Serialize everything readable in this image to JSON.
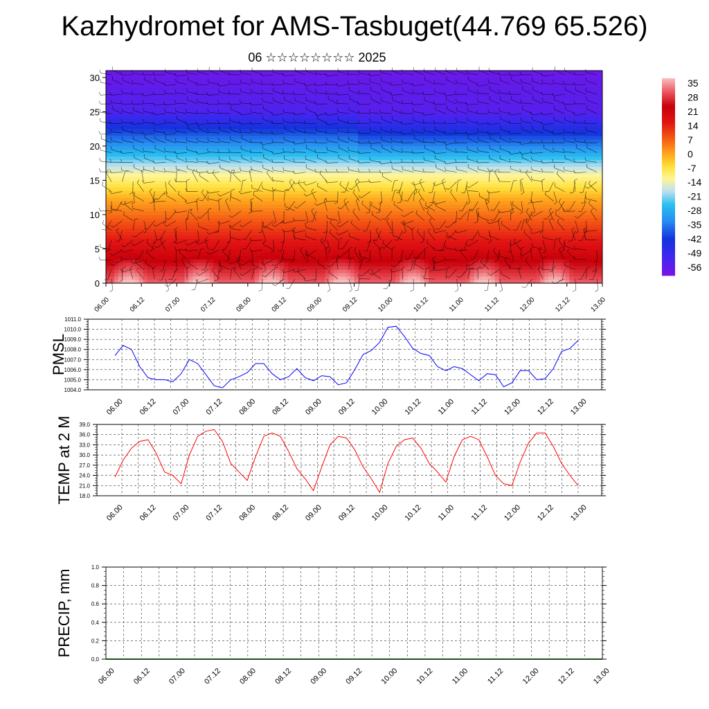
{
  "header": {
    "title": "Kazhydromet for AMS-Tasbuget(44.769 65.526)",
    "subtitle": "06 ☆☆☆☆☆☆☆☆ 2025"
  },
  "colors": {
    "pmsl_line": "#0000ff",
    "temp_line": "#ff0000",
    "precip_baseline": "#1a4d1a",
    "grid": "#333333"
  },
  "chart_data": [
    {
      "type": "heatmap",
      "name": "cross-section",
      "x_tick_labels": [
        "06.00",
        "06.12",
        "07.00",
        "07.12",
        "08.00",
        "08.12",
        "09.00",
        "09.12",
        "10.00",
        "10.12",
        "11.00",
        "11.12",
        "12.00",
        "12.12",
        "13.00"
      ],
      "ylim": [
        0,
        31
      ],
      "y_ticks": [
        0,
        5,
        10,
        15,
        20,
        25,
        30
      ],
      "colorbar": {
        "labels": [
          "35",
          "28",
          "21",
          "14",
          "7",
          "0",
          "-7",
          "-14",
          "-21",
          "-28",
          "-35",
          "-42",
          "-49",
          "-56"
        ],
        "range": [
          -60,
          38
        ]
      },
      "overlay": "wind barbs"
    },
    {
      "type": "line",
      "ylabel": "PMSL",
      "color": "#0000ff",
      "y_tick_labels": [
        "1011.0",
        "1010.0",
        "1009.0",
        "1008.0",
        "1007.0",
        "1006.0",
        "1005.0",
        "1004.0"
      ],
      "ylim": [
        1004.0,
        1011.0
      ],
      "x_tick_labels": [
        "06.00",
        "06.12",
        "07.00",
        "07.12",
        "08.00",
        "08.12",
        "09.00",
        "09.12",
        "10.00",
        "10.12",
        "11.00",
        "11.12",
        "12.00",
        "12.12",
        "13.00"
      ],
      "values": [
        1007.4,
        1008.4,
        1008.0,
        1006.3,
        1005.2,
        1005.0,
        1005.0,
        1004.8,
        1005.6,
        1007.0,
        1006.6,
        1005.5,
        1004.4,
        1004.2,
        1005.0,
        1005.3,
        1005.7,
        1006.6,
        1006.6,
        1005.6,
        1005.0,
        1005.3,
        1006.1,
        1005.2,
        1004.9,
        1005.4,
        1005.3,
        1004.5,
        1004.7,
        1006.0,
        1007.5,
        1007.9,
        1008.7,
        1010.2,
        1010.3,
        1009.3,
        1008.1,
        1007.6,
        1007.4,
        1006.3,
        1005.9,
        1006.3,
        1006.1,
        1005.5,
        1004.9,
        1005.6,
        1005.5,
        1004.3,
        1004.7,
        1005.9,
        1005.9,
        1005.0,
        1005.1,
        1006.1,
        1007.8,
        1008.1,
        1008.9
      ]
    },
    {
      "type": "line",
      "ylabel": "TEMP at 2 M",
      "color": "#ff0000",
      "y_tick_labels": [
        "39.0",
        "36.0",
        "33.0",
        "30.0",
        "27.0",
        "24.0",
        "21.0",
        "18.0"
      ],
      "ylim": [
        18.0,
        39.0
      ],
      "x_tick_labels": [
        "06.00",
        "06.12",
        "07.00",
        "07.12",
        "08.00",
        "08.12",
        "09.00",
        "09.12",
        "10.00",
        "10.12",
        "11.00",
        "11.12",
        "12.00",
        "12.12",
        "13.00"
      ],
      "values": [
        23.5,
        28.5,
        32.0,
        34.0,
        34.5,
        30.5,
        25.0,
        24.0,
        21.5,
        30.0,
        35.5,
        37.0,
        37.5,
        34.0,
        27.5,
        25.0,
        22.5,
        29.5,
        35.5,
        36.5,
        35.5,
        31.0,
        26.0,
        23.0,
        19.5,
        26.5,
        33.0,
        35.5,
        35.0,
        31.5,
        26.5,
        23.0,
        19.0,
        27.5,
        32.5,
        34.5,
        35.0,
        32.0,
        27.5,
        25.0,
        22.0,
        29.5,
        34.5,
        35.5,
        34.5,
        29.5,
        24.0,
        21.5,
        21.0,
        28.0,
        33.5,
        36.5,
        36.5,
        32.5,
        27.5,
        24.0,
        21.0
      ]
    },
    {
      "type": "line",
      "ylabel": "PRECIP, mm",
      "y_tick_labels": [
        "1.0",
        "0.8",
        "0.6",
        "0.4",
        "0.2",
        "0.0"
      ],
      "ylim": [
        0.0,
        1.0
      ],
      "x_tick_labels": [
        "06.00",
        "06.12",
        "07.00",
        "07.12",
        "08.00",
        "08.12",
        "09.00",
        "09.12",
        "10.00",
        "10.12",
        "11.00",
        "11.12",
        "12.00",
        "12.12",
        "13.00"
      ],
      "values": [
        0,
        0,
        0,
        0,
        0,
        0,
        0,
        0,
        0,
        0,
        0,
        0,
        0,
        0,
        0,
        0,
        0,
        0,
        0,
        0,
        0,
        0,
        0,
        0,
        0,
        0,
        0,
        0,
        0,
        0,
        0,
        0,
        0,
        0,
        0,
        0,
        0,
        0,
        0,
        0,
        0,
        0,
        0,
        0,
        0,
        0,
        0,
        0,
        0,
        0,
        0,
        0,
        0,
        0,
        0,
        0,
        0
      ]
    }
  ]
}
